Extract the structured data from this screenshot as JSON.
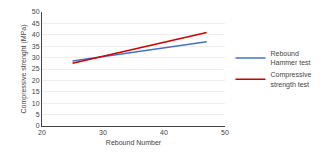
{
  "chart_data": {
    "type": "line",
    "x": [
      25,
      47
    ],
    "series": [
      {
        "name": "Rebound\nHammer test",
        "color": "#4472C4",
        "values": [
          28.5,
          37.0
        ]
      },
      {
        "name": "Compressive\nstrength test",
        "color": "#CC0000",
        "values": [
          27.5,
          41.0
        ]
      }
    ],
    "x_label": "Rebound Number",
    "y_label": "Compressive strenght (MPa)",
    "xlim": [
      20,
      50
    ],
    "ylim": [
      0,
      50
    ],
    "xticks": [
      20,
      30,
      40,
      50
    ],
    "yticks": [
      0,
      5,
      10,
      15,
      20,
      25,
      30,
      35,
      40,
      45,
      50
    ],
    "grid": true,
    "legend": "right"
  }
}
